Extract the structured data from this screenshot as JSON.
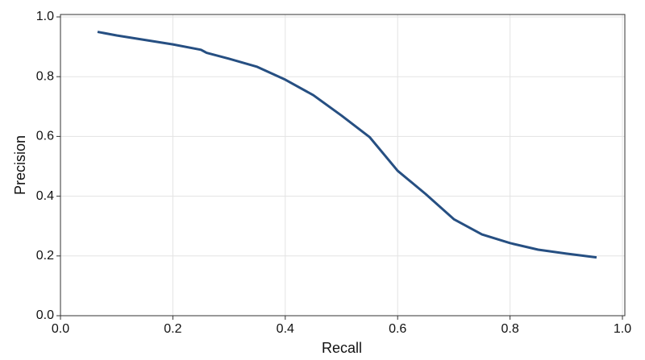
{
  "chart_data": {
    "type": "line",
    "x_label": "Recall",
    "y_label": "Precision",
    "x": [
      0.066,
      0.1,
      0.2,
      0.25,
      0.26,
      0.3,
      0.35,
      0.4,
      0.45,
      0.5,
      0.55,
      0.6,
      0.65,
      0.7,
      0.75,
      0.8,
      0.85,
      0.9,
      0.954
    ],
    "series": [
      {
        "color": "#264f82",
        "values": [
          0.95,
          0.938,
          0.908,
          0.89,
          0.88,
          0.86,
          0.833,
          0.79,
          0.738,
          0.67,
          0.598,
          0.485,
          0.407,
          0.323,
          0.272,
          0.243,
          0.221,
          0.208,
          0.195
        ]
      }
    ],
    "xlim": [
      0,
      1
    ],
    "ylim": [
      0,
      1
    ],
    "xticks": [
      {
        "value": 0,
        "label": "0.0"
      },
      0.2,
      0.4,
      0.6,
      0.8,
      {
        "value": 1,
        "label": "1.0"
      }
    ],
    "yticks": [
      {
        "value": 0,
        "label": "0.0"
      },
      0.2,
      0.4,
      0.6,
      0.8,
      {
        "value": 1,
        "label": "1.0"
      }
    ],
    "grid": true
  }
}
